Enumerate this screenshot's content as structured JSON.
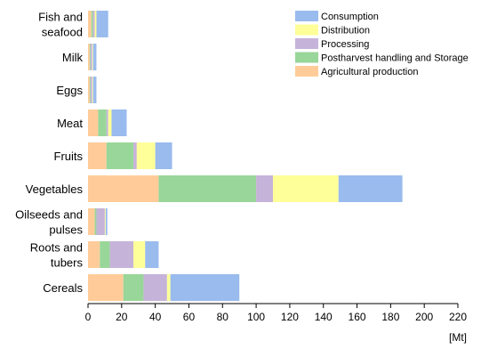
{
  "chart_data": {
    "type": "bar",
    "orientation": "horizontal",
    "stacked": true,
    "title": "",
    "xlabel": "[Mt]",
    "ylabel": "",
    "xlim": [
      0,
      220
    ],
    "x_ticks": [
      0,
      20,
      40,
      60,
      80,
      100,
      120,
      140,
      160,
      180,
      200,
      220
    ],
    "grid": false,
    "legend_position": "top-right",
    "categories": [
      [
        "Fish and",
        "seafood"
      ],
      [
        "Milk"
      ],
      [
        "Eggs"
      ],
      [
        "Meat"
      ],
      [
        "Fruits"
      ],
      [
        "Vegetables"
      ],
      [
        "Oilseeds and",
        "pulses"
      ],
      [
        "Roots and",
        "tubers"
      ],
      [
        "Cereals"
      ]
    ],
    "series": [
      {
        "name": "Agricultural production",
        "color": "#ffcc99",
        "values": [
          2,
          1,
          1,
          6,
          11,
          42,
          4,
          7,
          21
        ]
      },
      {
        "name": "Postharvest handling and Storage",
        "color": "#99d699",
        "values": [
          1,
          0.5,
          0.5,
          5,
          16,
          58,
          1,
          6,
          12
        ]
      },
      {
        "name": "Processing",
        "color": "#c6b3d9",
        "values": [
          1,
          1,
          1,
          1,
          2,
          10,
          5,
          14,
          14
        ]
      },
      {
        "name": "Distribution",
        "color": "#ffff99",
        "values": [
          1,
          0.5,
          0.5,
          2,
          11,
          39,
          0.5,
          7,
          2
        ]
      },
      {
        "name": "Consumption",
        "color": "#99bbee",
        "values": [
          7,
          2,
          2,
          9,
          10,
          38,
          1,
          8,
          41
        ]
      }
    ]
  }
}
